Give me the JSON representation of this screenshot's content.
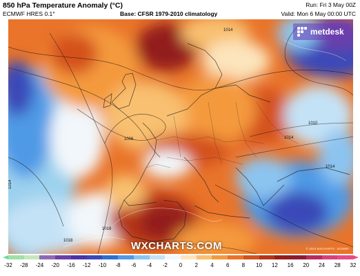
{
  "header": {
    "title": "850 hPa Temperature Anomaly (°C)",
    "model": "ECMWF HRES 0.1°",
    "base": "Base: CFSR 1979-2010 climatology",
    "run": "Run: Fri 3 May 00Z",
    "valid": "Valid: Mon 6 May 00:00 UTC"
  },
  "logo": {
    "text": "metdesk"
  },
  "watermark": "WXCHARTS.COM",
  "copyright": "© 2024 WXCHARTS · ECMWF",
  "isobar_labels": [
    "1014",
    "1010",
    "1014",
    "1006",
    "1014",
    "1018",
    "1018",
    "1014"
  ],
  "colors": {
    "deep_cold": "#3a2ca0",
    "cold": "#3f7fd8",
    "cool": "#9cd1ee",
    "neutral": "#ffffff",
    "warm": "#f7a23c",
    "hot": "#d7641e",
    "very_hot": "#a02016"
  },
  "legend": {
    "ticks": [
      "-32",
      "-28",
      "-24",
      "-20",
      "-16",
      "-12",
      "-10",
      "-8",
      "-6",
      "-4",
      "-2",
      "0",
      "2",
      "4",
      "6",
      "8",
      "10",
      "12",
      "16",
      "20",
      "24",
      "28",
      "32"
    ],
    "colors": [
      "#70d6a0",
      "#9fe0a8",
      "#c7e6c0",
      "#8e6ab4",
      "#6a40a8",
      "#4a34a6",
      "#3a48b8",
      "#2e6fd0",
      "#4f9ae6",
      "#8cc4f0",
      "#c4e2f6",
      "#f2f7fb",
      "#fce4bc",
      "#f8c070",
      "#f49a3c",
      "#e9742a",
      "#d4511e",
      "#b53418",
      "#931e1a",
      "#8c1c30",
      "#b82c5c",
      "#d84078",
      "#e84a86"
    ]
  }
}
